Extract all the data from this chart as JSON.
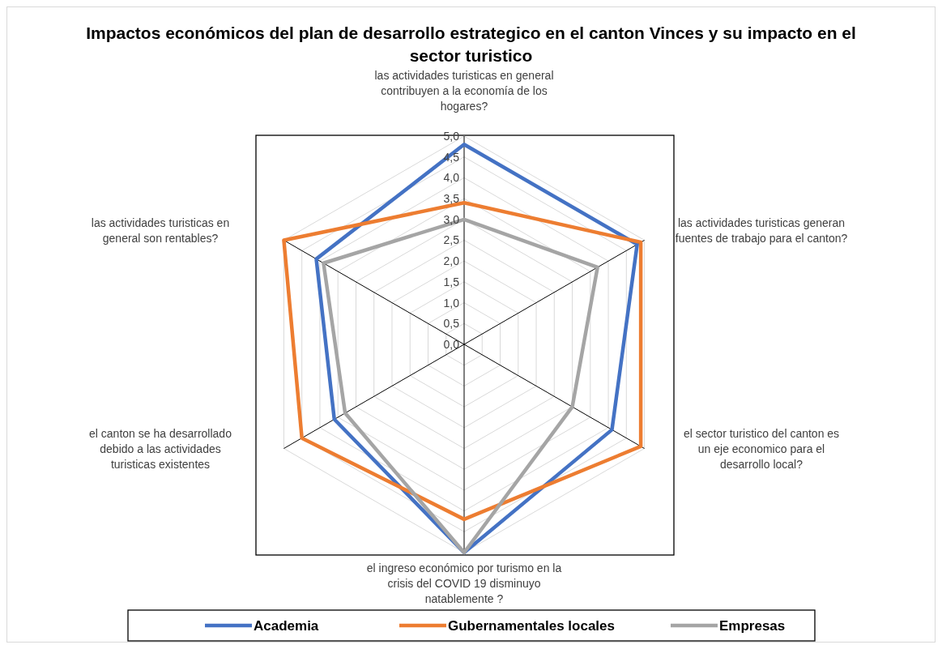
{
  "chart_data": {
    "type": "radar",
    "title": "Impactos económicos del plan de desarrollo estrategico en el canton Vinces y su impacto en el sector turistico",
    "categories": [
      "las actividades turisticas en general contribuyen a la economía de los hogares?",
      "las actividades turisticas generan fuentes de trabajo para el canton?",
      "el sector turistico del canton es un eje economico para el desarrollo local?",
      "el ingreso económico por turismo en la crisis del COVID 19 disminuyo natablemente ?",
      "el canton se ha desarrollado debido a las actividades turisticas existentes",
      "las actividades turisticas en general son  rentables?"
    ],
    "series": [
      {
        "name": "Academia",
        "color": "#4472c4",
        "values": [
          4.8,
          4.8,
          4.1,
          5.0,
          3.6,
          4.1
        ]
      },
      {
        "name": "Gubernamentales locales",
        "color": "#ed7d31",
        "values": [
          3.4,
          4.9,
          4.9,
          4.2,
          4.5,
          5.0
        ]
      },
      {
        "name": "Empresas",
        "color": "#a5a5a5",
        "values": [
          3.0,
          3.7,
          3.0,
          5.0,
          3.3,
          3.9
        ]
      }
    ],
    "ylim": [
      0,
      5
    ],
    "yticks": [
      {
        "value": 0,
        "label": "0,0"
      },
      {
        "value": 0.5,
        "label": "0,5"
      },
      {
        "value": 1,
        "label": "1,0"
      },
      {
        "value": 1.5,
        "label": "1,5"
      },
      {
        "value": 2,
        "label": "2,0"
      },
      {
        "value": 2.5,
        "label": "2,5"
      },
      {
        "value": 3,
        "label": "3,0"
      },
      {
        "value": 3.5,
        "label": "3,5"
      },
      {
        "value": 4,
        "label": "4,0"
      },
      {
        "value": 4.5,
        "label": "4,5"
      },
      {
        "value": 5,
        "label": "5,0"
      }
    ],
    "grid": true,
    "legend": "bottom",
    "marker": "none",
    "line_style": "solid"
  }
}
